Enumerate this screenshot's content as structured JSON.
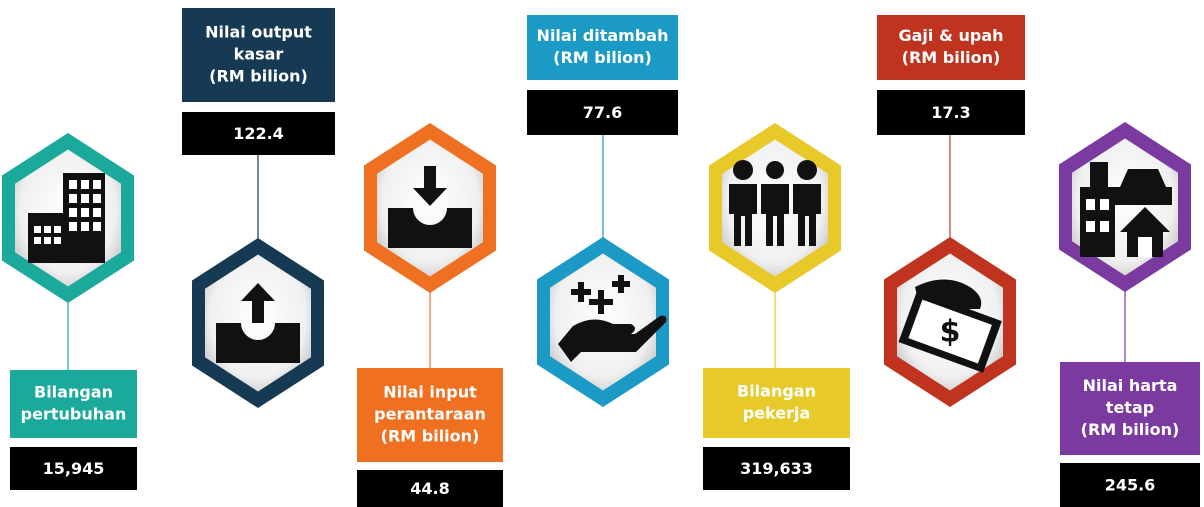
{
  "items": [
    {
      "label": [
        "Bilangan",
        "pertubuhan"
      ],
      "value": "15,945"
    },
    {
      "label": [
        "Nilai output",
        "kasar",
        "(RM bilion)"
      ],
      "value": "122.4"
    },
    {
      "label": [
        "Nilai input",
        "perantaraan",
        "(RM bilion)"
      ],
      "value": "44.8"
    },
    {
      "label": [
        "Nilai ditambah",
        "(RM bilion)"
      ],
      "value": "77.6"
    },
    {
      "label": [
        "Bilangan",
        "pekerja"
      ],
      "value": "319,633"
    },
    {
      "label": [
        "Gaji & upah",
        "(RM bilion)"
      ],
      "value": "17.3"
    },
    {
      "label": [
        "Nilai harta",
        "tetap",
        "(RM bilion)"
      ],
      "value": "245.6"
    }
  ]
}
